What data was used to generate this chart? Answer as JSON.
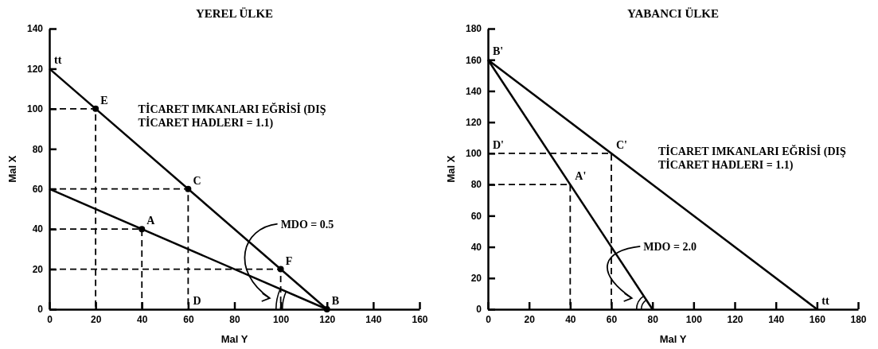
{
  "chart_data": [
    {
      "type": "line",
      "title": "YEREL ÜLKE",
      "xlabel": "Mal Y",
      "ylabel": "Mal X",
      "xlim": [
        0,
        160
      ],
      "ylim": [
        0,
        140
      ],
      "xticks": [
        0,
        20,
        40,
        60,
        80,
        100,
        120,
        140,
        160
      ],
      "yticks": [
        0,
        20,
        40,
        60,
        80,
        100,
        120,
        140
      ],
      "marker": "none",
      "grid": false,
      "series": [
        {
          "color": "#000000",
          "x": [
            0,
            120
          ],
          "values": [
            120,
            0
          ]
        },
        {
          "color": "#000000",
          "x": [
            0,
            120
          ],
          "values": [
            60,
            0
          ]
        },
        {
          "color": "#000000",
          "line_style": "dashed",
          "x": [
            0,
            20,
            20
          ],
          "values": [
            100,
            100,
            0
          ]
        },
        {
          "color": "#000000",
          "line_style": "dashed",
          "x": [
            0,
            60,
            60
          ],
          "values": [
            60,
            60,
            0
          ]
        },
        {
          "color": "#000000",
          "line_style": "dashed",
          "x": [
            0,
            40,
            40
          ],
          "values": [
            40,
            40,
            0
          ]
        },
        {
          "color": "#000000",
          "line_style": "dashed",
          "x": [
            0,
            100,
            100
          ],
          "values": [
            20,
            20,
            0
          ]
        },
        {
          "type": "scatter",
          "marker": "circle",
          "color": "#000000",
          "x": [
            20,
            60,
            40,
            100,
            120
          ],
          "values": [
            100,
            60,
            40,
            20,
            0
          ]
        }
      ],
      "annotations": [
        {
          "text": "tt",
          "x": 0,
          "y": 120
        },
        {
          "text": "E",
          "x": 20,
          "y": 100
        },
        {
          "text": "C",
          "x": 60,
          "y": 60
        },
        {
          "text": "A",
          "x": 40,
          "y": 40
        },
        {
          "text": "F",
          "x": 100,
          "y": 20
        },
        {
          "text": "B",
          "x": 120,
          "y": 0
        },
        {
          "text": "D",
          "x": 60,
          "y": 0
        },
        "TİCARET IMKANLARI EĞRİSİ (DIŞ TİCARET HADLERI = 1.1)",
        "MDO = 0.5"
      ]
    },
    {
      "type": "line",
      "title": "YABANCI ÜLKE",
      "xlabel": "Mal Y",
      "ylabel": "Mal X",
      "xlim": [
        0,
        180
      ],
      "ylim": [
        0,
        180
      ],
      "xticks": [
        0,
        20,
        40,
        60,
        80,
        100,
        120,
        140,
        160,
        180
      ],
      "yticks": [
        0,
        20,
        40,
        60,
        80,
        100,
        120,
        140,
        160,
        180
      ],
      "marker": "none",
      "grid": false,
      "series": [
        {
          "color": "#000000",
          "x": [
            0,
            160
          ],
          "values": [
            160,
            0
          ]
        },
        {
          "color": "#000000",
          "x": [
            0,
            80
          ],
          "values": [
            160,
            0
          ]
        },
        {
          "color": "#000000",
          "line_style": "dashed",
          "x": [
            0,
            60,
            60
          ],
          "values": [
            100,
            100,
            0
          ]
        },
        {
          "color": "#000000",
          "line_style": "dashed",
          "x": [
            0,
            40,
            40
          ],
          "values": [
            80,
            80,
            0
          ]
        }
      ],
      "annotations": [
        {
          "text": "B'",
          "x": 0,
          "y": 160
        },
        {
          "text": "D'",
          "x": 0,
          "y": 100
        },
        {
          "text": "C'",
          "x": 60,
          "y": 100
        },
        {
          "text": "A'",
          "x": 40,
          "y": 80
        },
        {
          "text": "tt",
          "x": 160,
          "y": 0
        },
        "TİCARET IMKANLARI EĞRİSİ (DIŞ TİCARET HADLERI = 1.1)",
        "MDO = 2.0"
      ]
    }
  ]
}
